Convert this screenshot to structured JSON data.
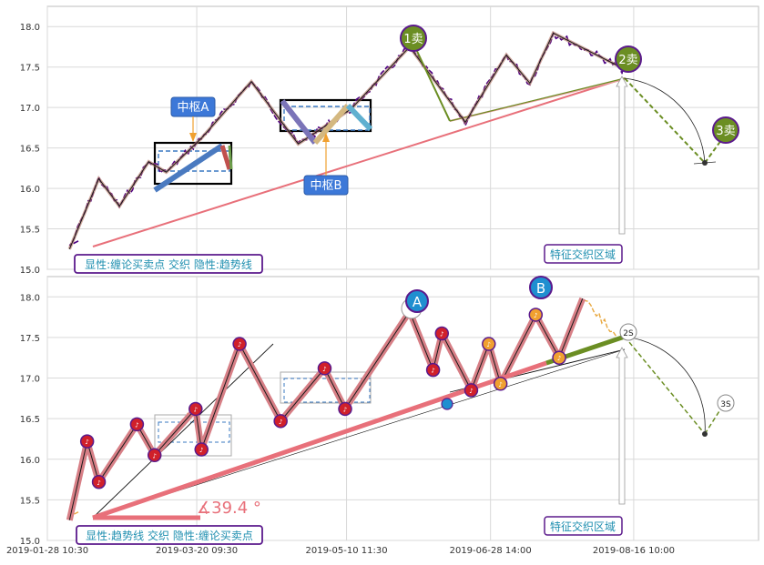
{
  "colors": {
    "price_top": "#4b0082",
    "price_bottom": "#e8a840",
    "zigzag": "#1a1a1a",
    "zigzag_shadow_top": "#b07060",
    "zigzag_shadow_bottom": "#d77f86",
    "trend": "#e8707a",
    "trend_green": "#6b8e23",
    "hub_box": "#000000",
    "hub_dash": "#3a78c2",
    "label_blue": "#3c78d8",
    "sell_green": "#6b8e23",
    "purple_border": "#5b1a8c",
    "region_text": "#1f8fb0",
    "fan_red": "#d0202a",
    "fan_orange": "#f0a030"
  },
  "chart_data": [
    {
      "type": "line",
      "panel": "top",
      "x_tick_labels": [],
      "y_ticks": [
        15.0,
        15.5,
        16.0,
        16.5,
        17.0,
        17.5,
        18.0
      ],
      "ylim": [
        15.0,
        18.25
      ],
      "grid": true,
      "zigzag": [
        {
          "x": "2019-02-05",
          "y": 15.25
        },
        {
          "x": "2019-02-15",
          "y": 16.12
        },
        {
          "x": "2019-02-22",
          "y": 15.78
        },
        {
          "x": "2019-03-04",
          "y": 16.33
        },
        {
          "x": "2019-03-10",
          "y": 16.2
        },
        {
          "x": "2019-03-22",
          "y": 16.62
        },
        {
          "x": "2019-04-08",
          "y": 17.32
        },
        {
          "x": "2019-04-24",
          "y": 16.55
        },
        {
          "x": "2019-05-12",
          "y": 16.98
        },
        {
          "x": "2019-06-01",
          "y": 17.75
        },
        {
          "x": "2019-06-20",
          "y": 16.82
        },
        {
          "x": "2019-07-04",
          "y": 17.65
        },
        {
          "x": "2019-07-12",
          "y": 17.3
        },
        {
          "x": "2019-07-20",
          "y": 17.92
        },
        {
          "x": "2019-08-13",
          "y": 17.48
        }
      ],
      "annotations": {
        "hub_a": "中枢A",
        "hub_b": "中枢B",
        "sell1": "1卖",
        "sell2": "2卖",
        "sell3": "3卖",
        "region": "特征交织区域",
        "legend": "显性:缠论买卖点 交织 隐性:趋势线"
      }
    },
    {
      "type": "line",
      "panel": "bottom",
      "x_tick_labels": [
        "2019-01-28 10:30",
        "2019-03-20 09:30",
        "2019-05-10 11:30",
        "2019-06-28 14:00",
        "2019-08-16 10:00"
      ],
      "y_ticks": [
        15.0,
        15.5,
        16.0,
        16.5,
        17.0,
        17.5,
        18.0
      ],
      "ylim": [
        15.0,
        18.25
      ],
      "grid": true,
      "zigzag": [
        {
          "x": "2019-02-05",
          "y": 15.25
        },
        {
          "x": "2019-02-11",
          "y": 16.22
        },
        {
          "x": "2019-02-15",
          "y": 15.72
        },
        {
          "x": "2019-02-28",
          "y": 16.43
        },
        {
          "x": "2019-03-06",
          "y": 16.05
        },
        {
          "x": "2019-03-20",
          "y": 16.62
        },
        {
          "x": "2019-03-22",
          "y": 16.12
        },
        {
          "x": "2019-04-04",
          "y": 17.42
        },
        {
          "x": "2019-04-18",
          "y": 16.47
        },
        {
          "x": "2019-05-03",
          "y": 17.12
        },
        {
          "x": "2019-05-10",
          "y": 16.62
        },
        {
          "x": "2019-06-01",
          "y": 17.82
        },
        {
          "x": "2019-06-09",
          "y": 17.1
        },
        {
          "x": "2019-06-12",
          "y": 17.55
        },
        {
          "x": "2019-06-22",
          "y": 16.85
        },
        {
          "x": "2019-06-28",
          "y": 17.42
        },
        {
          "x": "2019-07-02",
          "y": 16.93
        },
        {
          "x": "2019-07-14",
          "y": 17.78
        },
        {
          "x": "2019-07-22",
          "y": 17.25
        },
        {
          "x": "2019-07-30",
          "y": 17.98
        }
      ],
      "annotations": {
        "A": "A",
        "B": "B",
        "s2": "2S",
        "s3": "3S",
        "angle": "∡39.4 °",
        "region": "特征交织区域",
        "legend": "显性:趋势线 交织 隐性:缠论买卖点"
      }
    }
  ]
}
